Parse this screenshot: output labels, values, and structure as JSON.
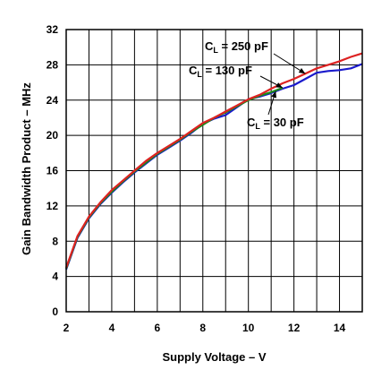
{
  "chart_data": {
    "type": "line",
    "title": "",
    "xlabel": "Supply Voltage – V",
    "ylabel": "Gain Bandwidth Product – MHz",
    "xlim": [
      2,
      15
    ],
    "ylim": [
      0,
      32
    ],
    "grid": true,
    "x_ticks": [
      2,
      4,
      6,
      8,
      10,
      12,
      14
    ],
    "y_ticks": [
      0,
      4,
      8,
      12,
      16,
      20,
      24,
      28,
      32
    ],
    "series": [
      {
        "name": "C_L = 30 pF",
        "label_main": "C",
        "label_sub": "L",
        "label_rest": " = 30 pF",
        "color": "#1a1acc",
        "x": [
          2,
          2.5,
          3,
          3.5,
          4,
          4.5,
          5,
          5.5,
          6,
          6.5,
          7,
          7.5,
          8,
          8.5,
          9,
          9.5,
          10,
          10.5,
          11,
          11.5,
          12,
          12.5,
          13,
          13.5,
          14,
          14.5,
          15
        ],
        "y": [
          4.8,
          8.4,
          10.6,
          12.2,
          13.5,
          14.7,
          15.8,
          16.8,
          17.8,
          18.6,
          19.4,
          20.3,
          21.3,
          21.9,
          22.3,
          23.2,
          24.1,
          24.4,
          24.8,
          25.3,
          25.7,
          26.4,
          27.1,
          27.3,
          27.4,
          27.6,
          28.1
        ]
      },
      {
        "name": "C_L = 130 pF",
        "label_main": "C",
        "label_sub": "L",
        "label_rest": " = 130 pF",
        "color": "#1a8a1a",
        "x": [
          2,
          2.5,
          3,
          3.5,
          4,
          4.5,
          5,
          5.5,
          6,
          6.5,
          7,
          7.5,
          8,
          8.5,
          9,
          9.5,
          10,
          10.5,
          11,
          11.5
        ],
        "y": [
          4.9,
          8.5,
          10.7,
          12.3,
          13.6,
          14.8,
          15.9,
          16.9,
          17.9,
          18.7,
          19.5,
          20.4,
          21.2,
          22.0,
          22.6,
          23.3,
          24.0,
          24.5,
          24.9,
          25.4
        ]
      },
      {
        "name": "C_L = 250 pF",
        "label_main": "C",
        "label_sub": "L",
        "label_rest": " = 250 pF",
        "color": "#dd2222",
        "x": [
          2,
          2.5,
          3,
          3.5,
          4,
          4.5,
          5,
          5.5,
          6,
          6.5,
          7,
          7.5,
          8,
          8.5,
          9,
          9.5,
          10,
          10.5,
          11,
          11.5,
          12,
          12.5,
          13,
          13.5,
          14,
          14.5,
          15
        ],
        "y": [
          5.0,
          8.6,
          10.8,
          12.4,
          13.8,
          14.9,
          16.0,
          17.1,
          18.0,
          18.8,
          19.6,
          20.5,
          21.4,
          22.0,
          22.7,
          23.4,
          24.1,
          24.6,
          25.3,
          25.9,
          26.4,
          27.0,
          27.6,
          28.0,
          28.4,
          28.9,
          29.3
        ]
      }
    ],
    "annotations": [
      {
        "series": 2,
        "at_x": 12.5
      },
      {
        "series": 1,
        "at_x": 11.5
      },
      {
        "series": 0,
        "at_x": 11.2
      }
    ]
  }
}
